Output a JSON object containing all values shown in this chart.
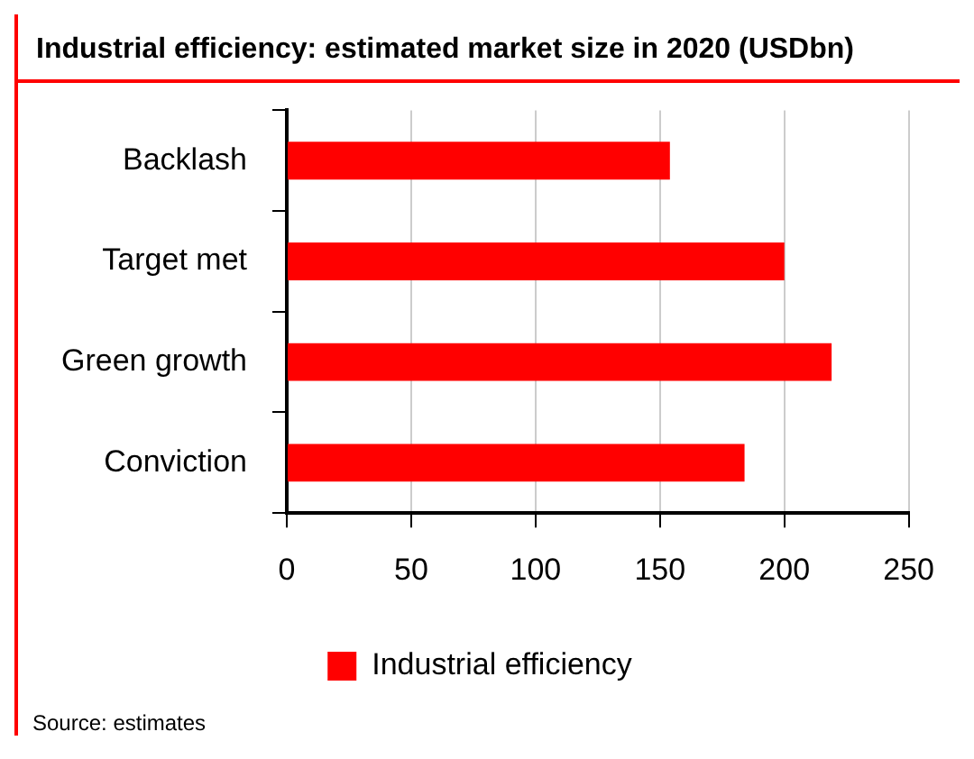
{
  "chart_data": {
    "type": "bar",
    "orientation": "horizontal",
    "title": "Industrial efficiency: estimated market size in 2020 (USDbn)",
    "categories": [
      "Backlash",
      "Target met",
      "Green growth",
      "Conviction"
    ],
    "series": [
      {
        "name": "Industrial efficiency",
        "color": "#ff0000",
        "values": [
          154,
          200,
          219,
          184
        ]
      }
    ],
    "xlim": [
      0,
      250
    ],
    "xticks": [
      0,
      50,
      100,
      150,
      200,
      250
    ],
    "grid": "x",
    "legend": "bottom",
    "annotations": [
      "Source: estimates"
    ]
  }
}
